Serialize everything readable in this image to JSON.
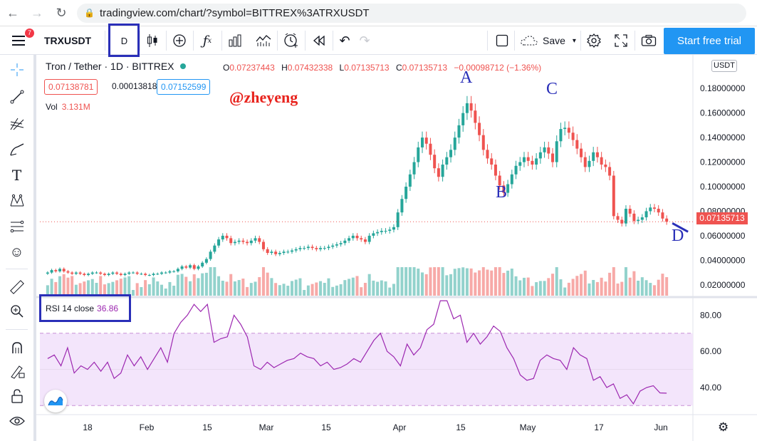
{
  "browser": {
    "url": "tradingview.com/chart/?symbol=BITTREX%3ATRXUSDT"
  },
  "toolbar": {
    "menu_badge": "7",
    "symbol": "TRXUSDT",
    "interval": "D",
    "save_label": "Save",
    "trial_label": "Start free trial"
  },
  "legend": {
    "title": "Tron / Tether · 1D · BITTREX",
    "o_label": "O",
    "o_value": "0.07237443",
    "h_label": "H",
    "h_value": "0.07432338",
    "l_label": "L",
    "l_value": "0.07135713",
    "c_label": "C",
    "c_value": "0.07135713",
    "change": "−0.00098712 (−1.36%)",
    "bid": "0.07138781",
    "spread": "0.00013818",
    "ask": "0.07152599",
    "vol_label": "Vol",
    "vol_value": "3.131M",
    "watermark": "@zheyeng",
    "rsi_label": "RSI 14 close",
    "rsi_value": "36.86"
  },
  "annotations": {
    "A": "A",
    "B": "B",
    "C": "C",
    "D": "D"
  },
  "axis": {
    "currency": "USDT",
    "last_price": "0.07135713",
    "price_ticks": [
      "0.18000000",
      "0.16000000",
      "0.14000000",
      "0.12000000",
      "0.10000000",
      "0.08000000",
      "0.06000000",
      "0.04000000",
      "0.02000000"
    ],
    "rsi_ticks": [
      "80.00",
      "60.00",
      "40.00"
    ],
    "x_ticks": [
      "18",
      "Feb",
      "15",
      "Mar",
      "15",
      "Apr",
      "15",
      "May",
      "17",
      "Jun"
    ]
  },
  "colors": {
    "up": "#26a69a",
    "down": "#ef5350",
    "rsi": "#9c27b0",
    "rsi_band": "#f3e5fb",
    "annotation": "#2a2fb8",
    "watermark": "#e8231d"
  },
  "chart_data": [
    {
      "type": "candlestick",
      "title": "Tron / Tether · 1D · BITTREX",
      "x_tick_labels": [
        "18",
        "Feb",
        "15",
        "Mar",
        "15",
        "Apr",
        "15",
        "May",
        "17",
        "Jun"
      ],
      "ylim": [
        0.01,
        0.19
      ],
      "close_series": [
        0.03,
        0.032,
        0.031,
        0.033,
        0.031,
        0.03,
        0.029,
        0.03,
        0.029,
        0.028,
        0.029,
        0.03,
        0.03,
        0.029,
        0.028,
        0.029,
        0.03,
        0.029,
        0.028,
        0.029,
        0.03,
        0.03,
        0.029,
        0.029,
        0.028,
        0.028,
        0.029,
        0.029,
        0.03,
        0.03,
        0.031,
        0.031,
        0.033,
        0.035,
        0.034,
        0.036,
        0.033,
        0.035,
        0.038,
        0.041,
        0.047,
        0.052,
        0.057,
        0.06,
        0.058,
        0.054,
        0.055,
        0.056,
        0.055,
        0.054,
        0.056,
        0.058,
        0.055,
        0.049,
        0.046,
        0.047,
        0.045,
        0.046,
        0.047,
        0.047,
        0.048,
        0.049,
        0.05,
        0.05,
        0.051,
        0.05,
        0.049,
        0.05,
        0.05,
        0.051,
        0.052,
        0.053,
        0.054,
        0.056,
        0.058,
        0.06,
        0.058,
        0.057,
        0.055,
        0.06,
        0.062,
        0.063,
        0.064,
        0.064,
        0.065,
        0.067,
        0.079,
        0.09,
        0.1,
        0.11,
        0.12,
        0.132,
        0.14,
        0.135,
        0.126,
        0.115,
        0.108,
        0.118,
        0.124,
        0.13,
        0.14,
        0.15,
        0.16,
        0.168,
        0.162,
        0.152,
        0.142,
        0.13,
        0.123,
        0.118,
        0.109,
        0.101,
        0.095,
        0.102,
        0.11,
        0.117,
        0.12,
        0.124,
        0.121,
        0.118,
        0.123,
        0.128,
        0.132,
        0.127,
        0.12,
        0.137,
        0.147,
        0.148,
        0.144,
        0.138,
        0.131,
        0.124,
        0.116,
        0.121,
        0.128,
        0.124,
        0.118,
        0.116,
        0.109,
        0.076,
        0.073,
        0.07,
        0.082,
        0.078,
        0.072,
        0.073,
        0.075,
        0.08,
        0.083,
        0.082,
        0.079,
        0.074,
        0.0714
      ],
      "volume_note": "volume histogram shown below candles",
      "annotations": [
        "A",
        "B",
        "C",
        "D"
      ]
    },
    {
      "type": "line",
      "title": "RSI 14 close",
      "ylim": [
        25,
        90
      ],
      "y_ticks": [
        80,
        60,
        40
      ],
      "band": [
        30,
        70
      ],
      "series": [
        {
          "name": "RSI 14 close",
          "values": [
            56,
            58,
            52,
            62,
            48,
            52,
            50,
            54,
            49,
            54,
            45,
            48,
            58,
            52,
            57,
            50,
            56,
            62,
            54,
            70,
            76,
            80,
            86,
            82,
            86,
            65,
            67,
            68,
            80,
            75,
            68,
            52,
            50,
            54,
            51,
            53,
            55,
            56,
            59,
            57,
            56,
            52,
            54,
            50,
            51,
            53,
            56,
            54,
            60,
            66,
            70,
            60,
            57,
            52,
            64,
            58,
            62,
            72,
            75,
            88,
            88,
            78,
            80,
            65,
            70,
            64,
            68,
            74,
            71,
            62,
            56,
            47,
            44,
            45,
            55,
            58,
            56,
            55,
            50,
            62,
            58,
            56,
            44,
            46,
            40,
            42,
            34,
            36,
            31,
            38,
            40,
            41,
            37,
            36.86
          ]
        }
      ]
    }
  ]
}
